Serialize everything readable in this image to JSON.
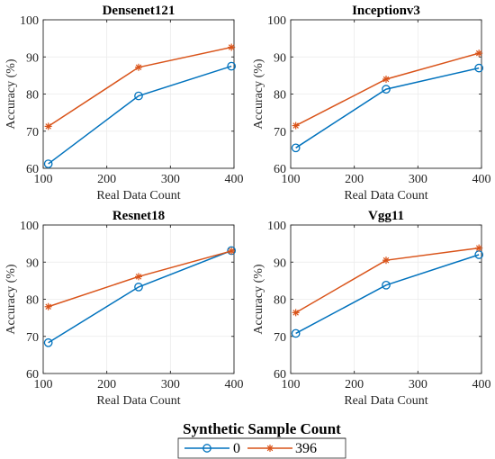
{
  "colors": {
    "series_0": "#0072BD",
    "series_396": "#D95319",
    "axis": "#262626",
    "grid": "#EBEBEB"
  },
  "legend": {
    "title": "Synthetic Sample Count",
    "entries": [
      {
        "label": "0",
        "marker": "circle",
        "color": "#0072BD"
      },
      {
        "label": "396",
        "marker": "asterisk",
        "color": "#D95319"
      }
    ]
  },
  "chart_data": [
    {
      "type": "line",
      "title": "Densenet121",
      "xlabel": "Real Data Count",
      "ylabel": "Accuracy (%)",
      "xlim": [
        100,
        400
      ],
      "ylim": [
        60,
        100
      ],
      "xticks": [
        100,
        200,
        300,
        400
      ],
      "yticks": [
        60,
        70,
        80,
        90,
        100
      ],
      "grid": true,
      "x": [
        108,
        250,
        396
      ],
      "series": [
        {
          "name": "0",
          "values": [
            61.2,
            79.5,
            87.5
          ]
        },
        {
          "name": "396",
          "values": [
            71.3,
            87.2,
            92.6
          ]
        }
      ]
    },
    {
      "type": "line",
      "title": "Inceptionv3",
      "xlabel": "Real Data Count",
      "ylabel": "Accuracy (%)",
      "xlim": [
        100,
        400
      ],
      "ylim": [
        60,
        100
      ],
      "xticks": [
        100,
        200,
        300,
        400
      ],
      "yticks": [
        60,
        70,
        80,
        90,
        100
      ],
      "grid": true,
      "x": [
        108,
        250,
        396
      ],
      "series": [
        {
          "name": "0",
          "values": [
            65.5,
            81.3,
            87.0
          ]
        },
        {
          "name": "396",
          "values": [
            71.5,
            84.0,
            91.0
          ]
        }
      ]
    },
    {
      "type": "line",
      "title": "Resnet18",
      "xlabel": "Real Data Count",
      "ylabel": "Accuracy (%)",
      "xlim": [
        100,
        400
      ],
      "ylim": [
        60,
        100
      ],
      "xticks": [
        100,
        200,
        300,
        400
      ],
      "yticks": [
        60,
        70,
        80,
        90,
        100
      ],
      "grid": true,
      "x": [
        108,
        250,
        396
      ],
      "series": [
        {
          "name": "0",
          "values": [
            68.3,
            83.3,
            93.1
          ]
        },
        {
          "name": "396",
          "values": [
            78.0,
            86.1,
            93.0
          ]
        }
      ]
    },
    {
      "type": "line",
      "title": "Vgg11",
      "xlabel": "Real Data Count",
      "ylabel": "Accuracy (%)",
      "xlim": [
        100,
        400
      ],
      "ylim": [
        60,
        100
      ],
      "xticks": [
        100,
        200,
        300,
        400
      ],
      "yticks": [
        60,
        70,
        80,
        90,
        100
      ],
      "grid": true,
      "x": [
        108,
        250,
        396
      ],
      "series": [
        {
          "name": "0",
          "values": [
            70.8,
            83.8,
            92.0
          ]
        },
        {
          "name": "396",
          "values": [
            76.4,
            90.5,
            93.8
          ]
        }
      ]
    }
  ]
}
